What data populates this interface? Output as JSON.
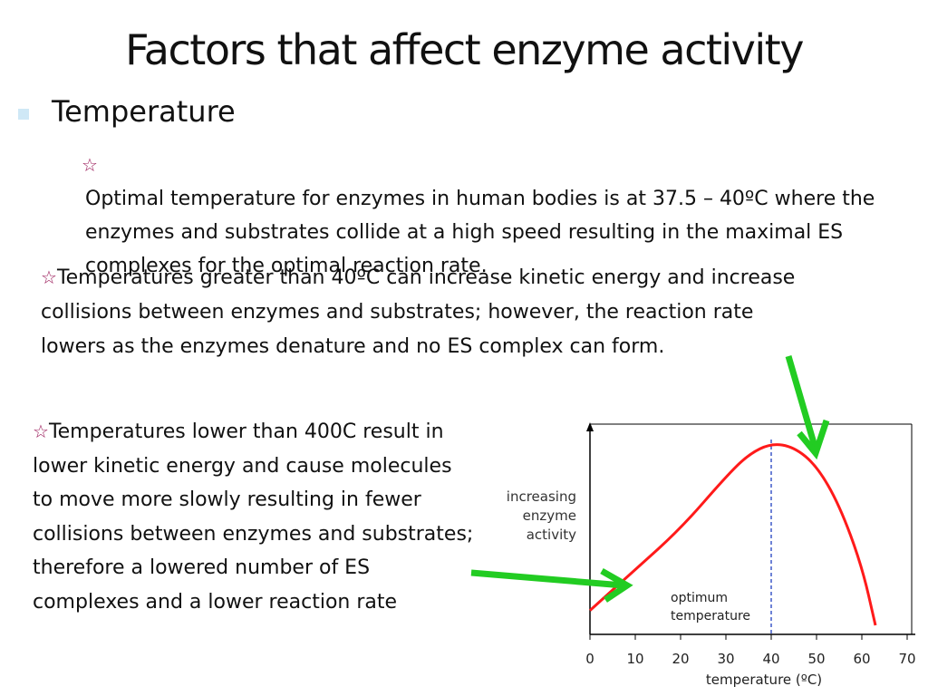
{
  "title": "Factors that affect enzyme activity",
  "level1": {
    "bullet_icon": "square-bullet",
    "text": "Temperature"
  },
  "points": [
    {
      "icon": "star-icon",
      "text": "Optimal temperature for enzymes in human bodies is at 37.5 – 40ºC where the enzymes and substrates collide at a high speed resulting in the maximal ES complexes for the optimal reaction rate."
    },
    {
      "icon": "star-icon",
      "text": "Temperatures greater than 40ºC can increase kinetic energy and increase collisions between enzymes and substrates; however, the reaction rate lowers as the enzymes denature and no ES complex can form."
    },
    {
      "icon": "star-icon",
      "text": "Temperatures lower than 400C result in lower kinetic energy and cause molecules to move more slowly resulting in fewer collisions between enzymes and substrates; therefore a lowered number of ES complexes and a lower reaction rate"
    }
  ],
  "colors": {
    "curve": "#ff1a1a",
    "optimum_line": "#1f3fbf",
    "arrows": "#22cc22",
    "star": "#9b1b5a"
  },
  "chart_data": {
    "type": "line",
    "ylabel": "increasing enzyme activity",
    "xlabel": "temperature (ºC)",
    "xticks": [
      0,
      10,
      20,
      30,
      40,
      50,
      60,
      70
    ],
    "xlim": [
      0,
      70
    ],
    "optimum_label": "optimum temperature",
    "optimum_x": 40,
    "series": [
      {
        "x": [
          0,
          10,
          20,
          30,
          35,
          40,
          45,
          50,
          55,
          60,
          63
        ],
        "y": [
          0.08,
          0.3,
          0.52,
          0.8,
          0.92,
          0.98,
          0.96,
          0.86,
          0.65,
          0.32,
          0.0
        ]
      }
    ]
  }
}
